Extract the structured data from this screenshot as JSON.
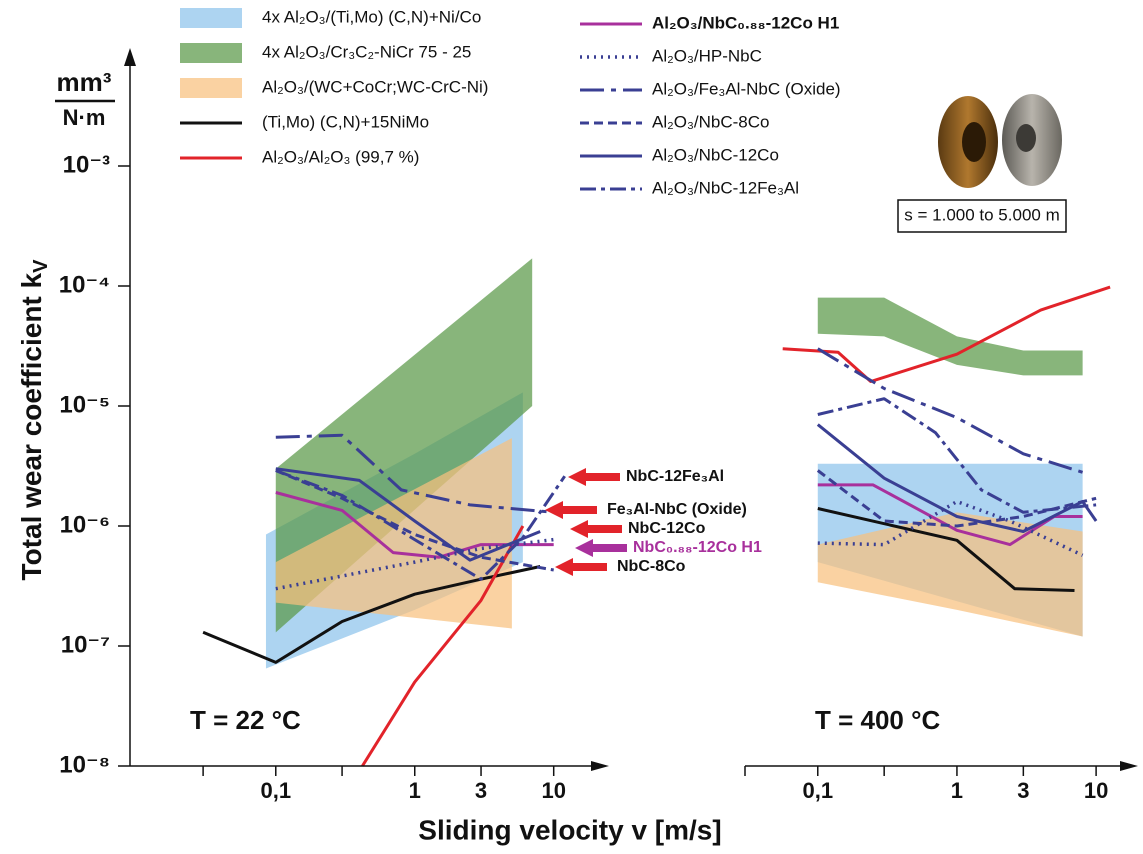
{
  "chart_data": {
    "type": "line",
    "log_x": true,
    "log_y": true,
    "ylabel": {
      "main": "Total wear coefficient k",
      "sub": "V"
    },
    "yunit": {
      "numerator": "mm³",
      "denominator": "N·m"
    },
    "xlabel": "Sliding velocity v [m/s]",
    "ylim": [
      1e-08,
      0.001
    ],
    "yticks": [
      {
        "value": 1e-08,
        "label": "10⁻⁸"
      },
      {
        "value": 1e-07,
        "label": "10⁻⁷"
      },
      {
        "value": 1e-06,
        "label": "10⁻⁶"
      },
      {
        "value": 1e-05,
        "label": "10⁻⁵"
      },
      {
        "value": 0.0001,
        "label": "10⁻⁴"
      },
      {
        "value": 0.001,
        "label": "10⁻³"
      }
    ],
    "panels": [
      {
        "label": "T = 22 °C",
        "xlim": [
          0.0085,
          25
        ],
        "xticks": [
          {
            "value": 0.1,
            "label": "0,1"
          },
          1,
          3,
          10
        ],
        "xminor": [
          0.03,
          0.3
        ]
      },
      {
        "label": "T = 400 °C",
        "xlim": [
          0.03,
          20
        ],
        "xticks": [
          {
            "value": 0.1,
            "label": "0,1"
          },
          1,
          3,
          10
        ],
        "xminor": [
          0.03,
          0.3
        ]
      }
    ],
    "series": [
      {
        "name": "4x Al₂O₃/(Ti,Mo) (C,N)+Ni/Co",
        "kind": "band",
        "color": "#8ec3ec",
        "panels": [
          {
            "x": [
              0.085,
              1,
              6
            ],
            "low": [
              6.5e-08,
              2e-07,
              5e-07
            ],
            "high": [
              8.5e-07,
              4e-06,
              1.3e-05
            ]
          },
          {
            "x": [
              0.1,
              8
            ],
            "low": [
              5e-07,
              1.2e-07
            ],
            "high": [
              3.3e-06,
              3.3e-06
            ]
          }
        ]
      },
      {
        "name": "4x Al₂O₃/Cr₃C₂-NiCr 75 - 25",
        "kind": "band",
        "color": "#5a9848",
        "panels": [
          {
            "x": [
              0.1,
              7
            ],
            "low": [
              1.3e-07,
              1e-05
            ],
            "high": [
              3e-06,
              0.00017
            ]
          },
          {
            "x": [
              0.1,
              0.3,
              1,
              3,
              8
            ],
            "low": [
              4e-05,
              3.8e-05,
              2.2e-05,
              1.8e-05,
              1.8e-05
            ],
            "high": [
              8e-05,
              8e-05,
              3.8e-05,
              2.9e-05,
              2.9e-05
            ]
          }
        ]
      },
      {
        "name": "Al₂O₃/(WC+CoCr;WC-CrC-Ni)",
        "kind": "band",
        "color": "#f8c17e",
        "panels": [
          {
            "x": [
              0.1,
              5
            ],
            "low": [
              2.3e-07,
              1.4e-07
            ],
            "high": [
              5e-07,
              5.4e-06
            ]
          },
          {
            "x": [
              0.1,
              1,
              8
            ],
            "low": [
              3.4e-07,
              2e-07,
              1.2e-07
            ],
            "high": [
              7e-07,
              1.3e-06,
              9e-07
            ]
          }
        ]
      },
      {
        "name": "(Ti,Mo) (C,N)+15NiMo",
        "kind": "line",
        "style": "solid",
        "color": "#111111",
        "panels": [
          {
            "x": [
              0.03,
              0.1,
              0.3,
              1,
              3,
              8
            ],
            "values": [
              1.3e-07,
              7.3e-08,
              1.6e-07,
              2.7e-07,
              3.6e-07,
              4.6e-07
            ]
          },
          {
            "x": [
              0.1,
              1,
              2.6,
              7
            ],
            "values": [
              1.4e-06,
              7.6e-07,
              3e-07,
              2.9e-07
            ]
          }
        ]
      },
      {
        "name": "Al₂O₃/Al₂O₃ (99,7 %)",
        "kind": "line",
        "style": "solid",
        "color": "#e2232a",
        "panels": [
          {
            "x": [
              0.42,
              1,
              3,
              6
            ],
            "values": [
              1e-08,
              5e-08,
              2.4e-07,
              1e-06
            ]
          },
          {
            "x": [
              0.056,
              0.14,
              0.24,
              1,
              4,
              12.6
            ],
            "values": [
              3e-05,
              2.8e-05,
              1.6e-05,
              2.7e-05,
              6.3e-05,
              9.8e-05
            ]
          }
        ]
      },
      {
        "name": "Al₂O₃/NbC₀.₈₈-12Co H1",
        "kind": "line",
        "style": "solid",
        "bold": true,
        "color": "#a8309c",
        "panels": [
          {
            "x": [
              0.1,
              0.3,
              0.7,
              1.5,
              3,
              10
            ],
            "values": [
              1.9e-06,
              1.35e-06,
              6e-07,
              5.5e-07,
              7e-07,
              7e-07
            ]
          },
          {
            "x": [
              0.1,
              0.25,
              1,
              2.4,
              5,
              8
            ],
            "values": [
              2.2e-06,
              2.2e-06,
              9.2e-07,
              7e-07,
              1.2e-06,
              1.2e-06
            ]
          }
        ]
      },
      {
        "name": "Al₂O₃/HP-NbC",
        "kind": "line",
        "style": "dotted",
        "color": "#3a3f93",
        "panels": [
          {
            "x": [
              0.1,
              1,
              3,
              10
            ],
            "values": [
              3e-07,
              5e-07,
              6.5e-07,
              7.7e-07
            ]
          },
          {
            "x": [
              0.1,
              0.3,
              1,
              2.4,
              8
            ],
            "values": [
              7.2e-07,
              7e-07,
              1.6e-06,
              1.1e-06,
              5.7e-07
            ]
          }
        ]
      },
      {
        "name": "Al₂O₃/Fe₃Al-NbC (Oxide)",
        "kind": "line",
        "style": "dashdot-long",
        "color": "#3a3f93",
        "panels": [
          {
            "x": [
              0.1,
              0.3,
              0.8,
              2.5,
              10
            ],
            "values": [
              5.5e-06,
              5.7e-06,
              2e-06,
              1.5e-06,
              1.3e-06
            ]
          },
          {
            "x": [
              0.1,
              0.3,
              1,
              3,
              8
            ],
            "values": [
              3e-05,
              1.4e-05,
              8e-06,
              4e-06,
              2.8e-06
            ]
          }
        ]
      },
      {
        "name": "Al₂O₃/NbC-8Co",
        "kind": "line",
        "style": "dashed",
        "color": "#3a3f93",
        "panels": [
          {
            "x": [
              0.1,
              0.3,
              1,
              3,
              10
            ],
            "values": [
              2.9e-06,
              1.7e-06,
              8.5e-07,
              5.5e-07,
              4.3e-07
            ]
          },
          {
            "x": [
              0.1,
              0.3,
              1,
              3,
              10
            ],
            "values": [
              2.9e-06,
              1.1e-06,
              1e-06,
              1.2e-06,
              1.7e-06
            ]
          }
        ]
      },
      {
        "name": "Al₂O₃/NbC-12Co",
        "kind": "line",
        "style": "solid",
        "color": "#3a3f93",
        "panels": [
          {
            "x": [
              0.1,
              0.4,
              1,
              2.5,
              8
            ],
            "values": [
              3e-06,
              2.4e-06,
              1.1e-06,
              5.2e-07,
              9e-07
            ]
          },
          {
            "x": [
              0.1,
              0.3,
              1,
              3,
              8,
              10
            ],
            "values": [
              7e-06,
              2.5e-06,
              1.2e-06,
              9e-07,
              1.6e-06,
              1.1e-06
            ]
          }
        ]
      },
      {
        "name": "Al₂O₃/NbC-12Fe₃Al",
        "kind": "line",
        "style": "dashdot",
        "color": "#3a3f93",
        "panels": [
          {
            "x": [
              0.1,
              0.3,
              1,
              3,
              6,
              12
            ],
            "values": [
              2.9e-06,
              1.8e-06,
              7.7e-07,
              3.6e-07,
              8e-07,
              2.6e-06
            ]
          },
          {
            "x": [
              0.1,
              0.3,
              0.7,
              1.5,
              3,
              10
            ],
            "values": [
              8.5e-06,
              1.15e-05,
              6e-06,
              2e-06,
              1.3e-06,
              1.5e-06
            ]
          }
        ]
      }
    ],
    "annotations": [
      {
        "text": "NbC-12Fe₃Al",
        "color": "#111111"
      },
      {
        "text": "Fe₃Al-NbC (Oxide)",
        "color": "#111111"
      },
      {
        "text": "NbC-12Co",
        "color": "#111111"
      },
      {
        "text": "NbC₀.₈₈-12Co H1",
        "color": "#a8309c"
      },
      {
        "text": "NbC-8Co",
        "color": "#111111"
      }
    ],
    "inset_label": "s = 1.000 to 5.000 m"
  }
}
